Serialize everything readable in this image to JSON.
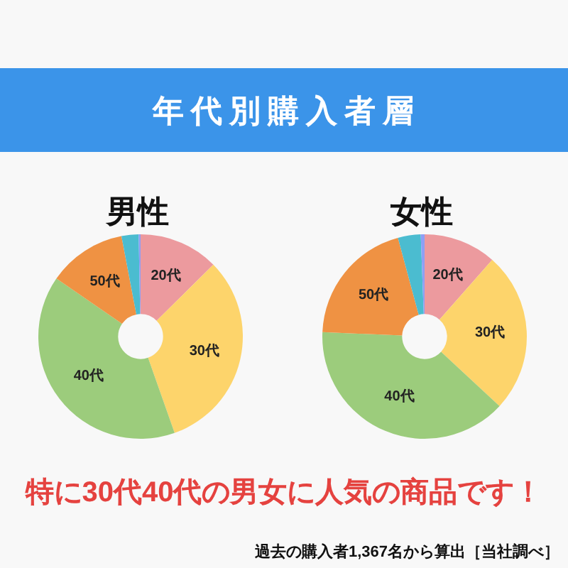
{
  "chart_data": [
    {
      "type": "donut",
      "title": "男性",
      "categories": [
        "20代",
        "30代",
        "40代",
        "50代",
        null,
        null
      ],
      "values": [
        12.6,
        32,
        40,
        12.4,
        2.7,
        0.3
      ],
      "colors": [
        "#ec9a9e",
        "#fdd46b",
        "#9ccc7c",
        "#ef9243",
        "#4bbcd0",
        "#8e9ff5"
      ],
      "annotations": [
        "年代別購入者層",
        "特に30代40代の男女に人気の商品です！",
        "過去の購入者1,367名から算出［当社調べ］"
      ]
    },
    {
      "type": "donut",
      "title": "女性",
      "categories": [
        "20代",
        "30代",
        "40代",
        "50代",
        null,
        null
      ],
      "values": [
        11.5,
        25.4,
        38.8,
        20.1,
        3.6,
        0.6
      ],
      "colors": [
        "#ec9a9e",
        "#fdd46b",
        "#9ccc7c",
        "#ef9243",
        "#4bbcd0",
        "#8e9ff5"
      ]
    }
  ]
}
